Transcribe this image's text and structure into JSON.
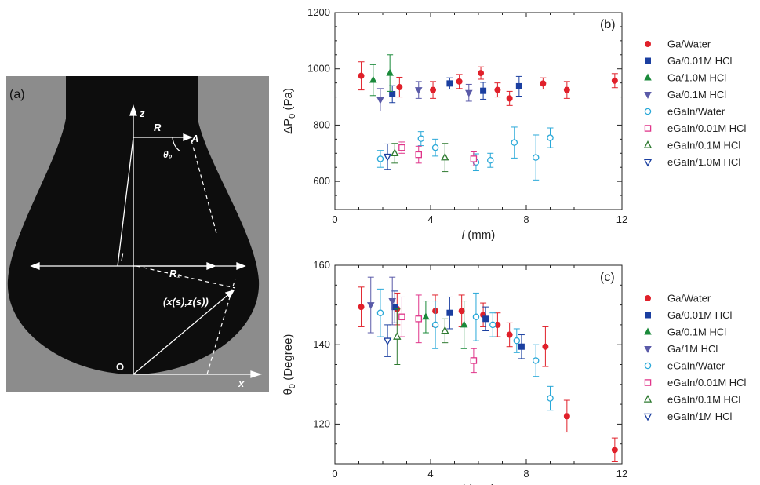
{
  "panel_a": {
    "label": "(a)",
    "annotations": {
      "z": "z",
      "R": "R",
      "A": "A",
      "theta0": "θ₀",
      "l": "l",
      "R1": "R₁",
      "xs_zs": "(x(s),z(s))",
      "origin": "O",
      "x": "x"
    }
  },
  "chart_data": [
    {
      "type": "scatter",
      "panel_label": "(b)",
      "xlabel_sym": "l",
      "xlabel_unit": " (mm)",
      "ylabel": "ΔP",
      "ylabel_sub": "0",
      "ylabel_unit": " (Pa)",
      "xlim": [
        0,
        12
      ],
      "ylim": [
        500,
        1200
      ],
      "xticks": [
        0,
        4,
        8,
        12
      ],
      "yticks": [
        600,
        800,
        1000,
        1200
      ],
      "grid": false,
      "legend": "right",
      "series": [
        {
          "name": "Ga/Water",
          "color": "#e0202a",
          "marker": "circle",
          "filled": true,
          "points": [
            [
              1.1,
              975,
              50
            ],
            [
              2.7,
              935,
              35
            ],
            [
              4.1,
              925,
              30
            ],
            [
              5.2,
              955,
              25
            ],
            [
              6.1,
              985,
              22
            ],
            [
              6.8,
              925,
              25
            ],
            [
              7.3,
              895,
              25
            ],
            [
              8.7,
              948,
              20
            ],
            [
              9.7,
              925,
              30
            ],
            [
              11.7,
              958,
              25
            ]
          ]
        },
        {
          "name": "Ga/0.01M HCl",
          "color": "#1b3fa0",
          "marker": "square",
          "filled": true,
          "points": [
            [
              2.4,
              910,
              30
            ],
            [
              4.8,
              948,
              20
            ],
            [
              6.2,
              922,
              30
            ],
            [
              7.7,
              938,
              35
            ]
          ]
        },
        {
          "name": "Ga/1.0M HCl",
          "color": "#1a8a3a",
          "marker": "triangle-up",
          "filled": true,
          "points": [
            [
              1.6,
              960,
              55
            ],
            [
              2.3,
              985,
              65
            ]
          ]
        },
        {
          "name": "Ga/0.1M HCl",
          "color": "#5a5aa8",
          "marker": "triangle-down",
          "filled": true,
          "points": [
            [
              1.9,
              890,
              40
            ],
            [
              3.5,
              925,
              30
            ],
            [
              5.6,
              915,
              30
            ]
          ]
        },
        {
          "name": "eGaIn/Water",
          "color": "#29a8d8",
          "marker": "circle",
          "filled": false,
          "points": [
            [
              1.9,
              680,
              30
            ],
            [
              3.6,
              752,
              25
            ],
            [
              4.2,
              720,
              30
            ],
            [
              5.9,
              668,
              30
            ],
            [
              6.5,
              675,
              25
            ],
            [
              7.5,
              738,
              55
            ],
            [
              8.4,
              685,
              80
            ],
            [
              9.0,
              755,
              35
            ]
          ]
        },
        {
          "name": "eGaIn/0.01M HCl",
          "color": "#e0358a",
          "marker": "square",
          "filled": false,
          "points": [
            [
              2.8,
              720,
              20
            ],
            [
              3.5,
              695,
              30
            ],
            [
              5.8,
              680,
              25
            ]
          ]
        },
        {
          "name": "eGaIn/0.1M HCl",
          "color": "#2e7a30",
          "marker": "triangle-up",
          "filled": false,
          "points": [
            [
              2.5,
              700,
              35
            ],
            [
              4.6,
              685,
              50
            ]
          ]
        },
        {
          "name": "eGaIn/1.0M HCl",
          "color": "#1b3fa0",
          "marker": "triangle-down",
          "filled": false,
          "points": [
            [
              2.2,
              688,
              45
            ]
          ]
        }
      ]
    },
    {
      "type": "scatter",
      "panel_label": "(c)",
      "xlabel_sym": "l",
      "xlabel_unit": " (mm)",
      "ylabel": "θ",
      "ylabel_sub": "0",
      "ylabel_unit": " (Degree)",
      "xlim": [
        0,
        12
      ],
      "ylim": [
        110,
        160
      ],
      "xticks": [
        0,
        4,
        8,
        12
      ],
      "yticks": [
        120,
        140,
        160
      ],
      "grid": false,
      "legend": "right",
      "series": [
        {
          "name": "Ga/Water",
          "color": "#e0202a",
          "marker": "circle",
          "filled": true,
          "points": [
            [
              1.1,
              149.5,
              5
            ],
            [
              2.6,
              149,
              4
            ],
            [
              4.2,
              148.5,
              4
            ],
            [
              5.3,
              148.5,
              4
            ],
            [
              6.2,
              147.5,
              3
            ],
            [
              6.8,
              145,
              3
            ],
            [
              7.3,
              142.5,
              3
            ],
            [
              8.8,
              139.5,
              5
            ],
            [
              9.7,
              122,
              4
            ],
            [
              11.7,
              113.5,
              3
            ]
          ]
        },
        {
          "name": "Ga/0.01M HCl",
          "color": "#1b3fa0",
          "marker": "square",
          "filled": true,
          "points": [
            [
              2.5,
              149.5,
              4
            ],
            [
              4.8,
              148,
              4
            ],
            [
              6.3,
              146.5,
              3
            ],
            [
              7.8,
              139.5,
              3
            ]
          ]
        },
        {
          "name": "Ga/0.1M HCl",
          "color": "#1a8a3a",
          "marker": "triangle-up",
          "filled": true,
          "points": [
            [
              3.8,
              147,
              4
            ],
            [
              5.4,
              145,
              6
            ]
          ]
        },
        {
          "name": "Ga/1M HCl",
          "color": "#5a5aa8",
          "marker": "triangle-down",
          "filled": true,
          "points": [
            [
              1.5,
              150,
              7
            ],
            [
              2.4,
              151,
              6
            ]
          ]
        },
        {
          "name": "eGaIn/Water",
          "color": "#29a8d8",
          "marker": "circle",
          "filled": false,
          "points": [
            [
              1.9,
              148,
              6
            ],
            [
              4.2,
              145,
              6
            ],
            [
              5.9,
              147,
              6
            ],
            [
              6.6,
              145,
              3
            ],
            [
              7.6,
              141,
              3
            ],
            [
              8.4,
              136,
              4
            ],
            [
              9.0,
              126.5,
              3
            ]
          ]
        },
        {
          "name": "eGaIn/0.01M HCl",
          "color": "#e0358a",
          "marker": "square",
          "filled": false,
          "points": [
            [
              2.8,
              147,
              5
            ],
            [
              3.5,
              146.5,
              6
            ],
            [
              5.8,
              136,
              3
            ]
          ]
        },
        {
          "name": "eGaIn/0.1M HCl",
          "color": "#2e7a30",
          "marker": "triangle-up",
          "filled": false,
          "points": [
            [
              2.6,
              142,
              7
            ],
            [
              4.6,
              143.5,
              3
            ]
          ]
        },
        {
          "name": "eGaIn/1M HCl",
          "color": "#1b3fa0",
          "marker": "triangle-down",
          "filled": false,
          "points": [
            [
              2.2,
              141,
              4
            ]
          ]
        }
      ]
    }
  ]
}
